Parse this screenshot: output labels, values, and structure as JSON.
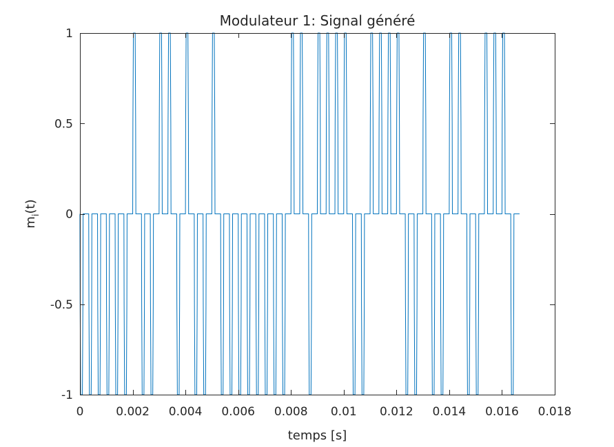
{
  "figure": {
    "title": "Modulateur 1: Signal généré"
  },
  "chart_data": {
    "type": "line",
    "title": "Modulateur 1: Signal généré",
    "xlabel": "temps [s]",
    "ylabel_base": "m",
    "ylabel_sub": "i",
    "ylabel_tail": "(t)",
    "xlim": [
      0,
      0.018
    ],
    "ylim": [
      -1,
      1
    ],
    "x_ticks": [
      0,
      0.002,
      0.004,
      0.006,
      0.008,
      0.01,
      0.012,
      0.014,
      0.016,
      0.018
    ],
    "x_tick_labels": [
      "0",
      "0.002",
      "0.004",
      "0.006",
      "0.008",
      "0.01",
      "0.012",
      "0.014",
      "0.016",
      "0.018"
    ],
    "y_ticks": [
      -1,
      -0.5,
      0,
      0.5,
      1
    ],
    "y_tick_labels": [
      "-1",
      "-0.5",
      "0",
      "0.5",
      "1"
    ],
    "grid": false,
    "line_color": "#0072bd",
    "series": [
      {
        "pulse_width": 0.00012,
        "pulse_starts": [
          0.0,
          0.000333,
          0.000667,
          0.001,
          0.001333,
          0.001667,
          0.002,
          0.002333,
          0.002667,
          0.003,
          0.003333,
          0.003667,
          0.004,
          0.004333,
          0.004667,
          0.005,
          0.005333,
          0.005667,
          0.006,
          0.006333,
          0.006667,
          0.007,
          0.007333,
          0.007667,
          0.008,
          0.008333,
          0.008667,
          0.009,
          0.009333,
          0.009667,
          0.01,
          0.010333,
          0.010667,
          0.011,
          0.011333,
          0.011667,
          0.012,
          0.012333,
          0.012667,
          0.013,
          0.013333,
          0.013667,
          0.014,
          0.014333,
          0.014667,
          0.015,
          0.015333,
          0.015667,
          0.016,
          0.016333
        ],
        "pulse_amplitudes": [
          -1,
          -1,
          -1,
          -1,
          -1,
          -1,
          1,
          -1,
          -1,
          1,
          1,
          -1,
          1,
          -1,
          -1,
          1,
          -1,
          -1,
          -1,
          -1,
          -1,
          -1,
          -1,
          -1,
          1,
          1,
          -1,
          1,
          1,
          1,
          1,
          -1,
          -1,
          1,
          1,
          1,
          1,
          -1,
          -1,
          1,
          -1,
          -1,
          1,
          1,
          -1,
          -1,
          1,
          1,
          1,
          -1
        ],
        "t_end": 0.01667
      }
    ]
  }
}
